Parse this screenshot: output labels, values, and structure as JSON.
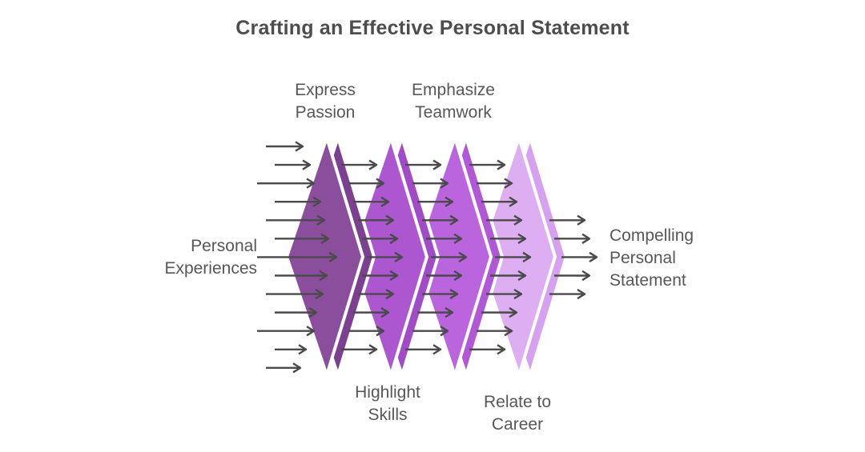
{
  "title": "Crafting an Effective Personal Statement",
  "diagram": {
    "input_label": {
      "lines": [
        "Personal",
        "Experiences"
      ]
    },
    "output_label": {
      "lines": [
        "Compelling",
        "Personal",
        "Statement"
      ]
    },
    "stages": [
      {
        "label": "Express Passion",
        "label_lines": [
          "Express",
          "Passion"
        ],
        "label_position": "top",
        "body_color": "#8B4E9D",
        "edge_color": "#7C4090"
      },
      {
        "label": "Highlight Skills",
        "label_lines": [
          "Highlight",
          "Skills"
        ],
        "label_position": "bottom",
        "body_color": "#AC57D0",
        "edge_color": "#A14BC7"
      },
      {
        "label": "Emphasize Teamwork",
        "label_lines": [
          "Emphasize",
          "Teamwork"
        ],
        "label_position": "top",
        "body_color": "#BA65DE",
        "edge_color": "#B058D5"
      },
      {
        "label": "Relate to Career",
        "label_lines": [
          "Relate to",
          "Career"
        ],
        "label_position": "bottom",
        "body_color": "#DEAEF3",
        "edge_color": "#D6A2EF"
      }
    ],
    "colors": {
      "arrow": "#4A4A4A",
      "text": "#575757",
      "title_text": "#4D4D4D",
      "background": "#FFFFFF",
      "separator": "#FFFFFF"
    }
  }
}
